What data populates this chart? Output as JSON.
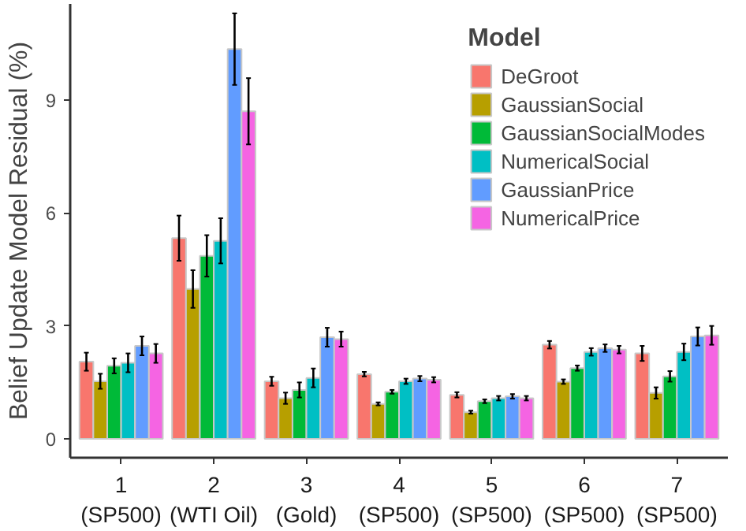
{
  "chart_data": {
    "type": "bar",
    "ylabel": "Belief Update Model Residual (%)",
    "legend_title": "Model",
    "categories": [
      "1\n(SP500)",
      "2\n(WTI Oil)",
      "3\n(Gold)",
      "4\n(SP500)",
      "5\n(SP500)",
      "6\n(SP500)",
      "7\n(SP500)"
    ],
    "series": [
      {
        "name": "DeGroot",
        "color": "#f8766d",
        "values": [
          2.05,
          5.33,
          1.53,
          1.72,
          1.17,
          2.5,
          2.27
        ],
        "errors": [
          0.24,
          0.6,
          0.12,
          0.06,
          0.07,
          0.1,
          0.2
        ]
      },
      {
        "name": "GaussianSocial",
        "color": "#b79f00",
        "values": [
          1.53,
          3.98,
          1.08,
          0.93,
          0.71,
          1.52,
          1.22
        ],
        "errors": [
          0.2,
          0.5,
          0.15,
          0.04,
          0.04,
          0.06,
          0.15
        ]
      },
      {
        "name": "GaussianSocialModes",
        "color": "#00ba38",
        "values": [
          1.94,
          4.86,
          1.3,
          1.25,
          1.0,
          1.88,
          1.66
        ],
        "errors": [
          0.2,
          0.55,
          0.2,
          0.05,
          0.05,
          0.07,
          0.14
        ]
      },
      {
        "name": "NumericalSocial",
        "color": "#00bfc4",
        "values": [
          2.02,
          5.26,
          1.62,
          1.53,
          1.08,
          2.31,
          2.31
        ],
        "errors": [
          0.25,
          0.6,
          0.25,
          0.07,
          0.06,
          0.1,
          0.22
        ]
      },
      {
        "name": "GaussianPrice",
        "color": "#619cff",
        "values": [
          2.47,
          10.35,
          2.7,
          1.6,
          1.13,
          2.41,
          2.72
        ],
        "errors": [
          0.25,
          0.95,
          0.25,
          0.07,
          0.06,
          0.1,
          0.24
        ]
      },
      {
        "name": "NumericalPrice",
        "color": "#f564e3",
        "values": [
          2.27,
          8.7,
          2.65,
          1.57,
          1.08,
          2.37,
          2.75
        ],
        "errors": [
          0.25,
          0.88,
          0.2,
          0.07,
          0.06,
          0.1,
          0.25
        ]
      }
    ],
    "ylim": [
      -0.5,
      11.55
    ],
    "yticks": [
      0,
      3,
      6,
      9
    ],
    "grid": false,
    "legend": "top right"
  }
}
